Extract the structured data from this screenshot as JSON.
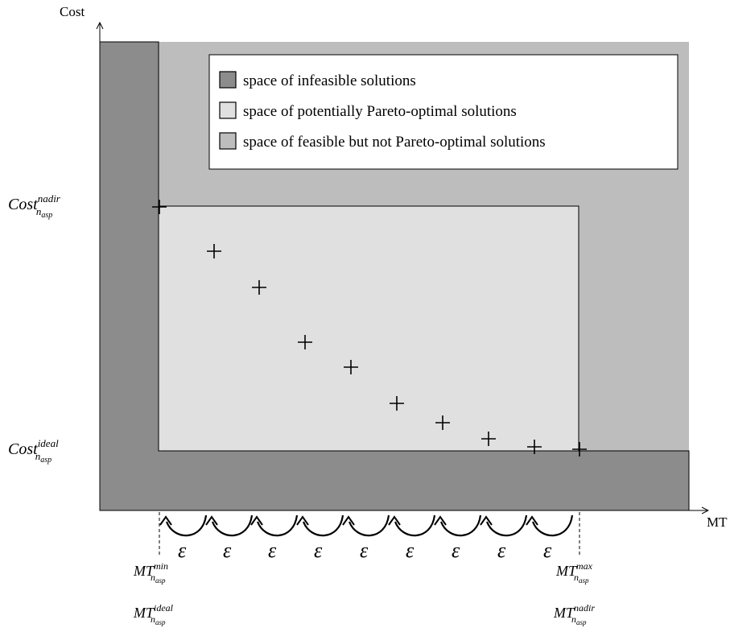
{
  "axes": {
    "y_label": "Cost",
    "x_label": "MT"
  },
  "legend": {
    "items": [
      {
        "label": "space of infeasible solutions",
        "color": "#8c8c8c"
      },
      {
        "label": "space of potentially Pareto-optimal solutions",
        "color": "#e0e0e0"
      },
      {
        "label": "space of feasible but not Pareto-optimal solutions",
        "color": "#bdbdbd"
      }
    ]
  },
  "y_markers": {
    "nadir": {
      "base": "Cost",
      "sup": "nadir",
      "sub": "n",
      "subsub": "asp"
    },
    "ideal": {
      "base": "Cost",
      "sup": "ideal",
      "sub": "n",
      "subsub": "asp"
    }
  },
  "x_markers": {
    "min": {
      "base": "MT",
      "sup": "min",
      "sub": "n",
      "subsub": "asp"
    },
    "max": {
      "base": "MT",
      "sup": "max",
      "sub": "n",
      "subsub": "asp"
    },
    "ideal": {
      "base": "MT",
      "sup": "ideal",
      "sub": "n",
      "subsub": "asp"
    },
    "nadir": {
      "base": "MT",
      "sup": "nadir",
      "sub": "n",
      "subsub": "asp"
    }
  },
  "epsilon": {
    "symbol": "ε",
    "count": 9
  },
  "pareto_points_count": 10,
  "colors": {
    "infeasible": "#8c8c8c",
    "pareto_region": "#e0e0e0",
    "feasible_not_pareto": "#bdbdbd"
  }
}
